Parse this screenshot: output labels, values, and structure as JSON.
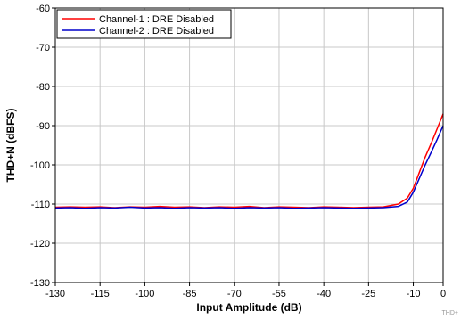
{
  "chart_data": {
    "type": "line",
    "xlabel": "Input Amplitude (dB)",
    "ylabel": "THD+N (dBFS)",
    "xlim": [
      -130,
      0
    ],
    "ylim": [
      -130,
      -60
    ],
    "xticks": [
      -130,
      -115,
      -100,
      -85,
      -70,
      -55,
      -40,
      -25,
      -10,
      0
    ],
    "yticks": [
      -60,
      -70,
      -80,
      -90,
      -100,
      -110,
      -120,
      -130
    ],
    "grid": true,
    "legend_position": "top-left",
    "watermark": "THD+",
    "series": [
      {
        "name": "Channel-1 : DRE Disabled",
        "color": "#ff0000",
        "x": [
          -130,
          -125,
          -120,
          -115,
          -110,
          -105,
          -100,
          -95,
          -90,
          -85,
          -80,
          -75,
          -70,
          -65,
          -60,
          -55,
          -50,
          -45,
          -40,
          -35,
          -30,
          -25,
          -20,
          -15,
          -12,
          -10,
          -8,
          -6,
          -4,
          -2,
          0
        ],
        "y": [
          -110.8,
          -110.7,
          -110.8,
          -110.7,
          -110.9,
          -110.7,
          -110.8,
          -110.6,
          -110.8,
          -110.7,
          -110.9,
          -110.7,
          -110.8,
          -110.6,
          -110.9,
          -110.7,
          -110.8,
          -110.9,
          -110.7,
          -110.8,
          -110.9,
          -110.8,
          -110.7,
          -110.0,
          -108.5,
          -106.0,
          -102.0,
          -98.0,
          -94.5,
          -90.8,
          -87.0
        ]
      },
      {
        "name": "Channel-2 : DRE Disabled",
        "color": "#0000cc",
        "x": [
          -130,
          -125,
          -120,
          -115,
          -110,
          -105,
          -100,
          -95,
          -90,
          -85,
          -80,
          -75,
          -70,
          -65,
          -60,
          -55,
          -50,
          -45,
          -40,
          -35,
          -30,
          -25,
          -20,
          -15,
          -12,
          -10,
          -8,
          -6,
          -4,
          -2,
          0
        ],
        "y": [
          -111.0,
          -110.9,
          -111.1,
          -110.9,
          -111.0,
          -110.8,
          -111.0,
          -110.9,
          -111.1,
          -110.9,
          -111.0,
          -110.9,
          -111.1,
          -110.9,
          -111.0,
          -110.9,
          -111.1,
          -111.0,
          -110.9,
          -111.0,
          -111.1,
          -111.0,
          -110.9,
          -110.6,
          -109.5,
          -107.0,
          -103.5,
          -100.0,
          -96.8,
          -93.5,
          -90.0
        ]
      }
    ]
  }
}
